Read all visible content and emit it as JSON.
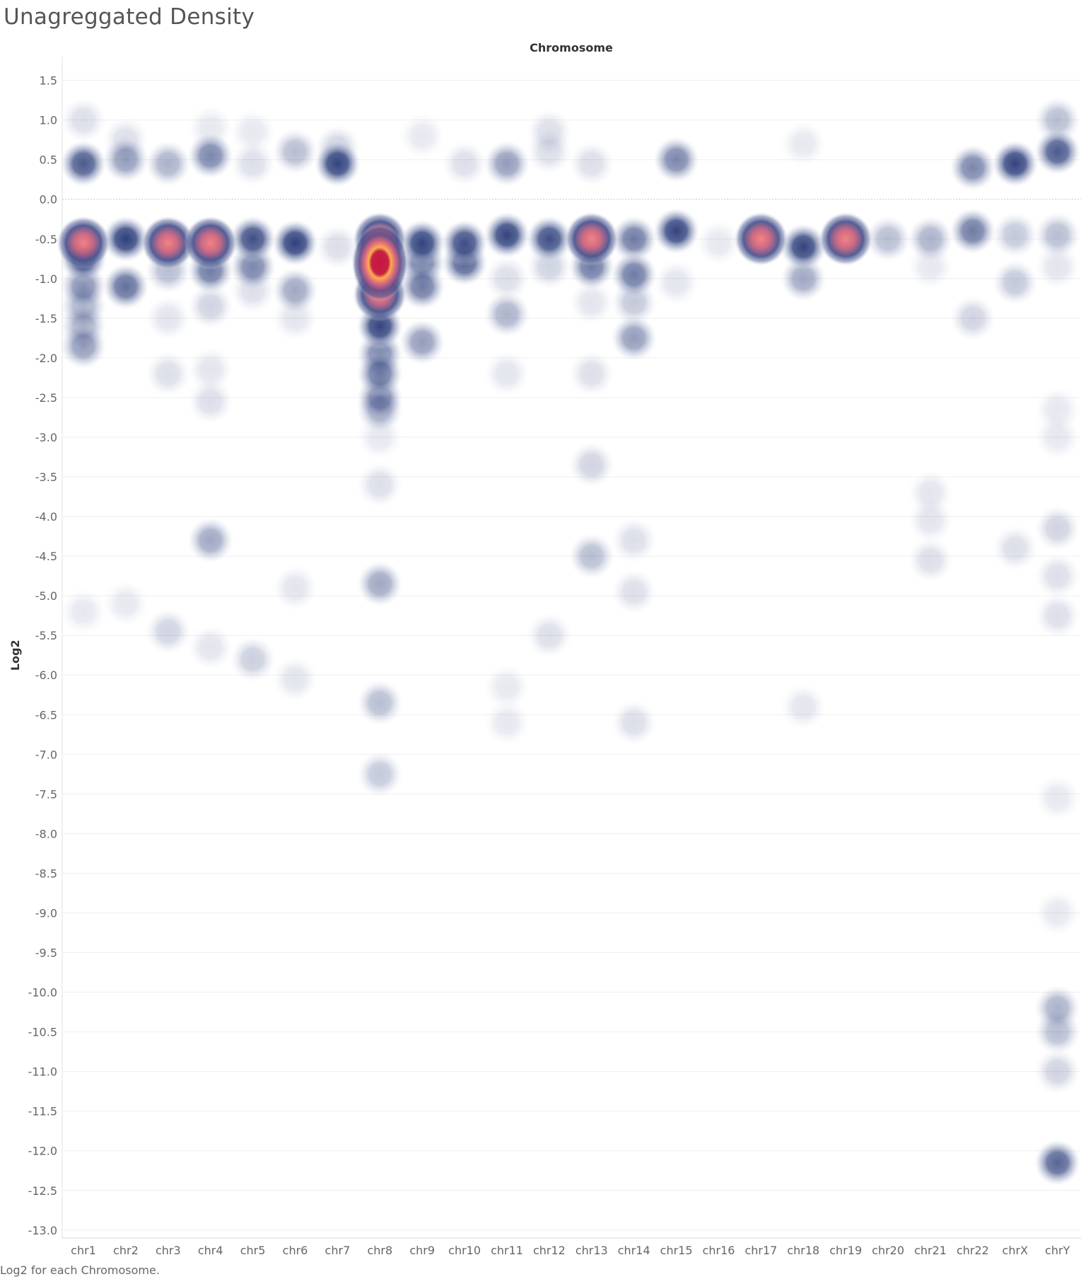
{
  "title": "Unagreggated Density",
  "caption": "Log2 for each Chromosome.",
  "chart_data": {
    "type": "heatmap",
    "title": "Unagreggated Density",
    "xlabel": "Chromosome",
    "ylabel": "Log2",
    "ylim": [
      -13.1,
      1.8
    ],
    "y_ticks": [
      "1.5",
      "1.0",
      "0.5",
      "0.0",
      "-0.5",
      "-1.0",
      "-1.5",
      "-2.0",
      "-2.5",
      "-3.0",
      "-3.5",
      "-4.0",
      "-4.5",
      "-5.0",
      "-5.5",
      "-6.0",
      "-6.5",
      "-7.0",
      "-7.5",
      "-8.0",
      "-8.5",
      "-9.0",
      "-9.5",
      "-10.0",
      "-10.5",
      "-11.0",
      "-11.5",
      "-12.0",
      "-12.5",
      "-13.0"
    ],
    "y_tick_values": [
      1.5,
      1.0,
      0.5,
      0.0,
      -0.5,
      -1.0,
      -1.5,
      -2.0,
      -2.5,
      -3.0,
      -3.5,
      -4.0,
      -4.5,
      -5.0,
      -5.5,
      -6.0,
      -6.5,
      -7.0,
      -7.5,
      -8.0,
      -8.5,
      -9.0,
      -9.5,
      -10.0,
      -10.5,
      -11.0,
      -11.5,
      -12.0,
      -12.5,
      -13.0
    ],
    "zero_line": 0,
    "grid": true,
    "colors": {
      "low": "#c9d0df",
      "mid": "#3f5088",
      "high_mid": "#9a4f86",
      "high": "#f07f7f",
      "peak": "#c81f45",
      "ring": "#f6b14c"
    },
    "categories": [
      "chr1",
      "chr2",
      "chr3",
      "chr4",
      "chr5",
      "chr6",
      "chr7",
      "chr8",
      "chr9",
      "chr10",
      "chr11",
      "chr12",
      "chr13",
      "chr14",
      "chr15",
      "chr16",
      "chr17",
      "chr18",
      "chr19",
      "chr20",
      "chr21",
      "chr22",
      "chrX",
      "chrY"
    ],
    "points": [
      {
        "chr": "chr1",
        "y": 1.0,
        "w": 0.15
      },
      {
        "chr": "chr1",
        "y": 0.45,
        "w": 0.75
      },
      {
        "chr": "chr1",
        "y": -0.55,
        "w": 1.0
      },
      {
        "chr": "chr1",
        "y": -0.75,
        "w": 0.85
      },
      {
        "chr": "chr1",
        "y": -1.1,
        "w": 0.5
      },
      {
        "chr": "chr1",
        "y": -1.35,
        "w": 0.35
      },
      {
        "chr": "chr1",
        "y": -1.6,
        "w": 0.35
      },
      {
        "chr": "chr1",
        "y": -1.85,
        "w": 0.45
      },
      {
        "chr": "chr1",
        "y": -5.2,
        "w": 0.1
      },
      {
        "chr": "chr2",
        "y": 0.75,
        "w": 0.15
      },
      {
        "chr": "chr2",
        "y": 0.5,
        "w": 0.45
      },
      {
        "chr": "chr2",
        "y": -0.5,
        "w": 0.9
      },
      {
        "chr": "chr2",
        "y": -1.1,
        "w": 0.65
      },
      {
        "chr": "chr2",
        "y": -5.1,
        "w": 0.1
      },
      {
        "chr": "chr3",
        "y": 0.45,
        "w": 0.35
      },
      {
        "chr": "chr3",
        "y": -0.55,
        "w": 0.95
      },
      {
        "chr": "chr3",
        "y": -0.9,
        "w": 0.3
      },
      {
        "chr": "chr3",
        "y": -1.5,
        "w": 0.12
      },
      {
        "chr": "chr3",
        "y": -2.2,
        "w": 0.15
      },
      {
        "chr": "chr3",
        "y": -5.45,
        "w": 0.2
      },
      {
        "chr": "chr4",
        "y": 0.9,
        "w": 0.1
      },
      {
        "chr": "chr4",
        "y": 0.55,
        "w": 0.55
      },
      {
        "chr": "chr4",
        "y": -0.55,
        "w": 0.95
      },
      {
        "chr": "chr4",
        "y": -0.9,
        "w": 0.6
      },
      {
        "chr": "chr4",
        "y": -1.35,
        "w": 0.2
      },
      {
        "chr": "chr4",
        "y": -2.15,
        "w": 0.12
      },
      {
        "chr": "chr4",
        "y": -2.55,
        "w": 0.15
      },
      {
        "chr": "chr4",
        "y": -4.3,
        "w": 0.4
      },
      {
        "chr": "chr4",
        "y": -5.65,
        "w": 0.12
      },
      {
        "chr": "chr5",
        "y": 0.85,
        "w": 0.08
      },
      {
        "chr": "chr5",
        "y": 0.45,
        "w": 0.15
      },
      {
        "chr": "chr5",
        "y": -0.5,
        "w": 0.8
      },
      {
        "chr": "chr5",
        "y": -0.85,
        "w": 0.55
      },
      {
        "chr": "chr5",
        "y": -1.15,
        "w": 0.15
      },
      {
        "chr": "chr5",
        "y": -5.8,
        "w": 0.22
      },
      {
        "chr": "chr6",
        "y": 0.6,
        "w": 0.3
      },
      {
        "chr": "chr6",
        "y": -0.55,
        "w": 0.9
      },
      {
        "chr": "chr6",
        "y": -1.15,
        "w": 0.4
      },
      {
        "chr": "chr6",
        "y": -1.5,
        "w": 0.12
      },
      {
        "chr": "chr6",
        "y": -4.9,
        "w": 0.12
      },
      {
        "chr": "chr6",
        "y": -6.05,
        "w": 0.12
      },
      {
        "chr": "chr7",
        "y": 0.65,
        "w": 0.2
      },
      {
        "chr": "chr7",
        "y": 0.45,
        "w": 0.85
      },
      {
        "chr": "chr7",
        "y": -0.6,
        "w": 0.15
      },
      {
        "chr": "chr8",
        "y": -0.5,
        "w": 1.0
      },
      {
        "chr": "chr8",
        "y": -0.8,
        "w": 1.6
      },
      {
        "chr": "chr8",
        "y": -1.2,
        "w": 1.0
      },
      {
        "chr": "chr8",
        "y": -1.6,
        "w": 0.85
      },
      {
        "chr": "chr8",
        "y": -1.95,
        "w": 0.55
      },
      {
        "chr": "chr8",
        "y": -2.2,
        "w": 0.6
      },
      {
        "chr": "chr8",
        "y": -2.5,
        "w": 0.5
      },
      {
        "chr": "chr8",
        "y": -2.65,
        "w": 0.4
      },
      {
        "chr": "chr8",
        "y": -3.0,
        "w": 0.1
      },
      {
        "chr": "chr8",
        "y": -3.6,
        "w": 0.15
      },
      {
        "chr": "chr8",
        "y": -4.85,
        "w": 0.4
      },
      {
        "chr": "chr8",
        "y": -6.35,
        "w": 0.3
      },
      {
        "chr": "chr8",
        "y": -7.25,
        "w": 0.25
      },
      {
        "chr": "chr9",
        "y": 0.8,
        "w": 0.1
      },
      {
        "chr": "chr9",
        "y": -0.55,
        "w": 0.85
      },
      {
        "chr": "chr9",
        "y": -0.8,
        "w": 0.6
      },
      {
        "chr": "chr9",
        "y": -1.1,
        "w": 0.6
      },
      {
        "chr": "chr9",
        "y": -1.8,
        "w": 0.45
      },
      {
        "chr": "chr10",
        "y": 0.45,
        "w": 0.15
      },
      {
        "chr": "chr10",
        "y": -0.55,
        "w": 0.8
      },
      {
        "chr": "chr10",
        "y": -0.8,
        "w": 0.7
      },
      {
        "chr": "chr11",
        "y": 0.45,
        "w": 0.45
      },
      {
        "chr": "chr11",
        "y": -0.45,
        "w": 0.85
      },
      {
        "chr": "chr11",
        "y": -1.0,
        "w": 0.15
      },
      {
        "chr": "chr11",
        "y": -1.45,
        "w": 0.35
      },
      {
        "chr": "chr11",
        "y": -2.2,
        "w": 0.12
      },
      {
        "chr": "chr11",
        "y": -6.15,
        "w": 0.1
      },
      {
        "chr": "chr11",
        "y": -6.6,
        "w": 0.1
      },
      {
        "chr": "chr12",
        "y": 0.85,
        "w": 0.15
      },
      {
        "chr": "chr12",
        "y": 0.6,
        "w": 0.15
      },
      {
        "chr": "chr12",
        "y": -0.5,
        "w": 0.8
      },
      {
        "chr": "chr12",
        "y": -0.85,
        "w": 0.2
      },
      {
        "chr": "chr12",
        "y": -5.5,
        "w": 0.15
      },
      {
        "chr": "chr13",
        "y": 0.45,
        "w": 0.15
      },
      {
        "chr": "chr13",
        "y": -0.5,
        "w": 0.95
      },
      {
        "chr": "chr13",
        "y": -0.85,
        "w": 0.6
      },
      {
        "chr": "chr13",
        "y": -1.3,
        "w": 0.12
      },
      {
        "chr": "chr13",
        "y": -2.2,
        "w": 0.15
      },
      {
        "chr": "chr13",
        "y": -3.35,
        "w": 0.2
      },
      {
        "chr": "chr13",
        "y": -4.5,
        "w": 0.3
      },
      {
        "chr": "chr14",
        "y": -0.5,
        "w": 0.6
      },
      {
        "chr": "chr14",
        "y": -0.95,
        "w": 0.6
      },
      {
        "chr": "chr14",
        "y": -1.3,
        "w": 0.25
      },
      {
        "chr": "chr14",
        "y": -1.75,
        "w": 0.45
      },
      {
        "chr": "chr14",
        "y": -4.3,
        "w": 0.15
      },
      {
        "chr": "chr14",
        "y": -4.95,
        "w": 0.15
      },
      {
        "chr": "chr14",
        "y": -6.6,
        "w": 0.15
      },
      {
        "chr": "chr15",
        "y": 0.5,
        "w": 0.55
      },
      {
        "chr": "chr15",
        "y": -0.4,
        "w": 0.85
      },
      {
        "chr": "chr15",
        "y": -1.05,
        "w": 0.12
      },
      {
        "chr": "chr16",
        "y": -0.55,
        "w": 0.08
      },
      {
        "chr": "chr17",
        "y": -0.5,
        "w": 1.0
      },
      {
        "chr": "chr18",
        "y": 0.7,
        "w": 0.1
      },
      {
        "chr": "chr18",
        "y": -0.6,
        "w": 0.85
      },
      {
        "chr": "chr18",
        "y": -1.0,
        "w": 0.4
      },
      {
        "chr": "chr18",
        "y": -6.4,
        "w": 0.12
      },
      {
        "chr": "chr19",
        "y": -0.5,
        "w": 0.95
      },
      {
        "chr": "chr20",
        "y": -0.5,
        "w": 0.3
      },
      {
        "chr": "chr21",
        "y": -0.5,
        "w": 0.35
      },
      {
        "chr": "chr21",
        "y": -0.85,
        "w": 0.1
      },
      {
        "chr": "chr21",
        "y": -3.7,
        "w": 0.12
      },
      {
        "chr": "chr21",
        "y": -4.05,
        "w": 0.12
      },
      {
        "chr": "chr21",
        "y": -4.55,
        "w": 0.15
      },
      {
        "chr": "chr22",
        "y": 0.4,
        "w": 0.55
      },
      {
        "chr": "chr22",
        "y": -0.4,
        "w": 0.6
      },
      {
        "chr": "chr22",
        "y": -1.5,
        "w": 0.2
      },
      {
        "chr": "chrX",
        "y": 0.45,
        "w": 0.85
      },
      {
        "chr": "chrX",
        "y": -0.45,
        "w": 0.25
      },
      {
        "chr": "chrX",
        "y": -1.05,
        "w": 0.25
      },
      {
        "chr": "chrX",
        "y": -4.4,
        "w": 0.15
      },
      {
        "chr": "chrY",
        "y": 1.0,
        "w": 0.3
      },
      {
        "chr": "chrY",
        "y": 0.6,
        "w": 0.75
      },
      {
        "chr": "chrY",
        "y": -0.45,
        "w": 0.3
      },
      {
        "chr": "chrY",
        "y": -0.85,
        "w": 0.12
      },
      {
        "chr": "chrY",
        "y": -2.65,
        "w": 0.1
      },
      {
        "chr": "chrY",
        "y": -3.0,
        "w": 0.1
      },
      {
        "chr": "chrY",
        "y": -4.15,
        "w": 0.2
      },
      {
        "chr": "chrY",
        "y": -4.75,
        "w": 0.15
      },
      {
        "chr": "chrY",
        "y": -5.25,
        "w": 0.15
      },
      {
        "chr": "chrY",
        "y": -7.55,
        "w": 0.1
      },
      {
        "chr": "chrY",
        "y": -9.0,
        "w": 0.08
      },
      {
        "chr": "chrY",
        "y": -10.2,
        "w": 0.35
      },
      {
        "chr": "chrY",
        "y": -10.5,
        "w": 0.3
      },
      {
        "chr": "chrY",
        "y": -11.0,
        "w": 0.2
      },
      {
        "chr": "chrY",
        "y": -12.15,
        "w": 0.7
      }
    ]
  }
}
